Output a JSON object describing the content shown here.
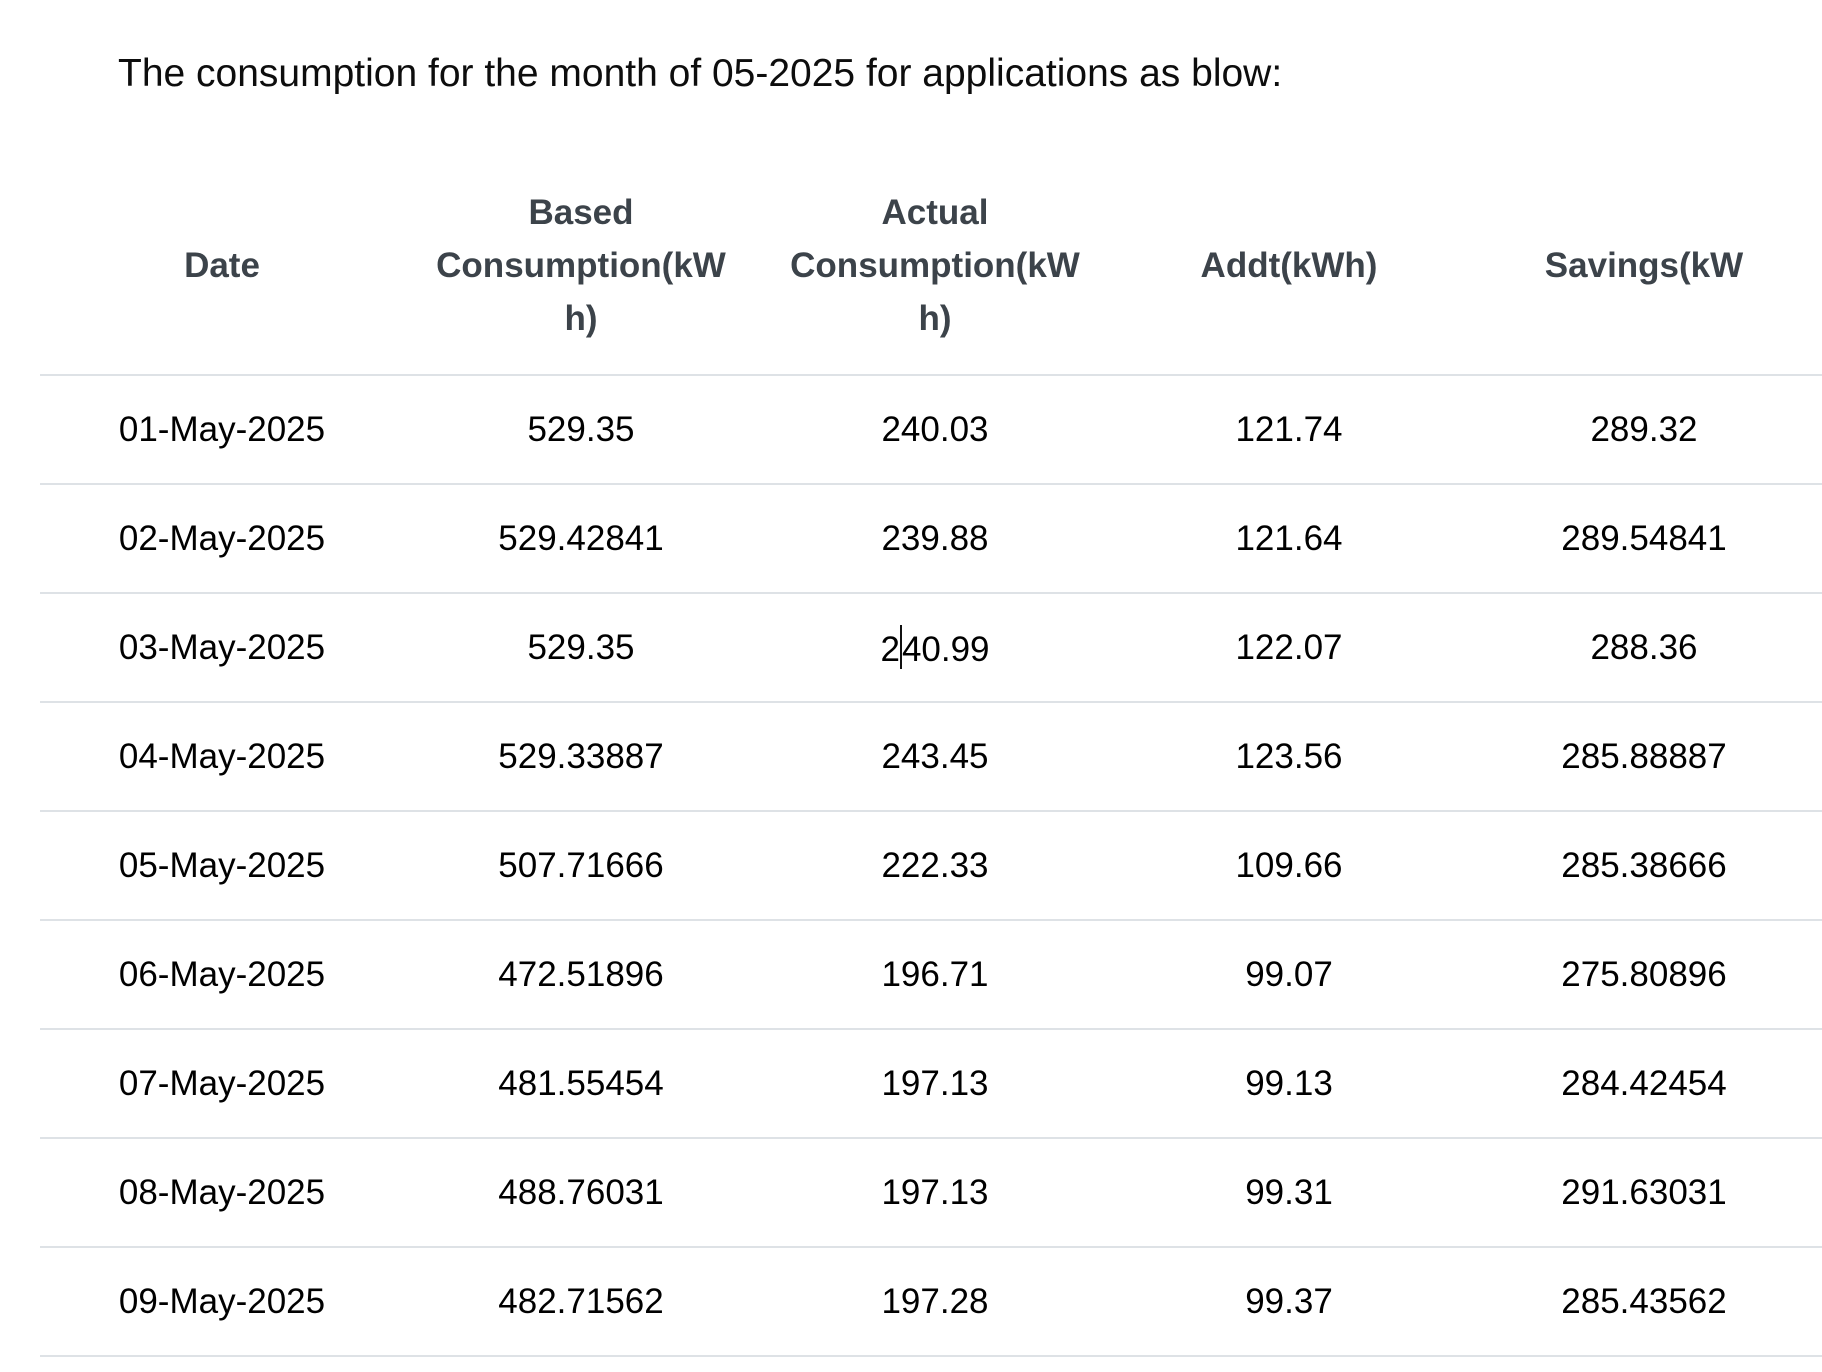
{
  "page": {
    "title": "The consumption for the month of 05-2025 for applications as blow:"
  },
  "colors": {
    "header_text": "#3c434a",
    "body_text": "#000000",
    "row_border": "#dee2e6",
    "caret": "#111111"
  },
  "table": {
    "columns": [
      {
        "key": "date",
        "label": "Date"
      },
      {
        "key": "based",
        "label": "Based\nConsumption(kW\nh)"
      },
      {
        "key": "actual",
        "label": "Actual\nConsumption(kW\nh)"
      },
      {
        "key": "addt",
        "label": "Addt(kWh)"
      },
      {
        "key": "savings",
        "label": "Savings(kW"
      }
    ],
    "rows": [
      [
        "01-May-2025",
        "529.35",
        "240.03",
        "121.74",
        "289.32"
      ],
      [
        "02-May-2025",
        "529.42841",
        "239.88",
        "121.64",
        "289.54841"
      ],
      [
        "03-May-2025",
        "529.35",
        "240.99",
        "122.07",
        "288.36"
      ],
      [
        "04-May-2025",
        "529.33887",
        "243.45",
        "123.56",
        "285.88887"
      ],
      [
        "05-May-2025",
        "507.71666",
        "222.33",
        "109.66",
        "285.38666"
      ],
      [
        "06-May-2025",
        "472.51896",
        "196.71",
        "99.07",
        "275.80896"
      ],
      [
        "07-May-2025",
        "481.55454",
        "197.13",
        "99.13",
        "284.42454"
      ],
      [
        "08-May-2025",
        "488.76031",
        "197.13",
        "99.31",
        "291.63031"
      ],
      [
        "09-May-2025",
        "482.71562",
        "197.28",
        "99.37",
        "285.43562"
      ]
    ],
    "caret": {
      "row": 2,
      "col": 2,
      "after_chars": 1
    }
  }
}
